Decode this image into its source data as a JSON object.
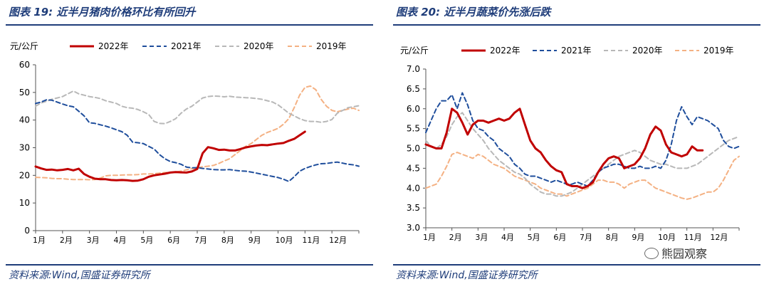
{
  "watermark": "熊园观察",
  "charts": [
    {
      "title": "图表 19:  近半月猪肉价格环比有所回升",
      "source": "资料来源:Wind,国盛证券研究所"
    },
    {
      "title": "图表 20:  近半月蔬菜价先涨后跌",
      "source": "资料来源:Wind,国盛证券研究所"
    }
  ],
  "chart_data": [
    {
      "type": "line",
      "ylabel": "元/公斤",
      "ylim": [
        0,
        60
      ],
      "yticks": [
        "0",
        "10",
        "20",
        "30",
        "40",
        "50",
        "60"
      ],
      "ytick_values": [
        0,
        10,
        20,
        30,
        40,
        50,
        60
      ],
      "categories": [
        "1月",
        "2月",
        "3月",
        "4月",
        "5月",
        "6月",
        "7月",
        "8月",
        "9月",
        "10月",
        "11月",
        "12月"
      ],
      "series": [
        {
          "name": "2022年",
          "color": "#c00000",
          "style": "solid",
          "width": 3,
          "x": [
            0,
            0.2,
            0.4,
            0.6,
            0.8,
            1,
            1.2,
            1.4,
            1.6,
            1.8,
            2,
            2.2,
            2.4,
            2.6,
            2.8,
            3,
            3.2,
            3.4,
            3.6,
            3.8,
            4,
            4.2,
            4.4,
            4.6,
            4.8,
            5,
            5.2,
            5.4,
            5.6,
            5.8,
            6,
            6.2,
            6.4,
            6.6,
            6.8,
            7,
            7.2,
            7.4,
            7.6,
            7.8,
            8,
            8.2,
            8.4,
            8.6,
            8.8,
            9,
            9.2,
            9.4,
            9.6,
            9.8,
            10
          ],
          "values": [
            23.2,
            22.5,
            22,
            22.1,
            21.8,
            22,
            22.3,
            21.8,
            22.4,
            20.5,
            19.5,
            18.8,
            18.6,
            18.6,
            18.3,
            18.2,
            18.3,
            18.2,
            18,
            18.1,
            18.6,
            19.5,
            20,
            20.3,
            20.6,
            21,
            21.2,
            21.1,
            21,
            21.4,
            22.3,
            28,
            30.2,
            29.8,
            29.2,
            29.3,
            29,
            29,
            29.5,
            30.1,
            30.5,
            30.8,
            31,
            30.9,
            31.2,
            31.5,
            31.7,
            32.5,
            33.2,
            34.5,
            35.8
          ]
        },
        {
          "name": "2021年",
          "color": "#1f4e9c",
          "style": "dashed",
          "width": 2,
          "x": [
            0,
            0.2,
            0.4,
            0.6,
            0.8,
            1,
            1.2,
            1.4,
            1.6,
            1.8,
            2,
            2.2,
            2.4,
            2.6,
            2.8,
            3,
            3.2,
            3.4,
            3.6,
            3.8,
            4,
            4.2,
            4.4,
            4.6,
            4.8,
            5,
            5.2,
            5.4,
            5.6,
            5.8,
            6,
            6.2,
            6.4,
            6.6,
            6.8,
            7,
            7.2,
            7.4,
            7.6,
            7.8,
            8,
            8.2,
            8.4,
            8.6,
            8.8,
            9,
            9.2,
            9.4,
            9.6,
            9.8,
            10,
            10.2,
            10.4,
            10.6,
            10.8,
            11,
            11.2,
            11.4,
            11.6,
            11.8,
            12
          ],
          "values": [
            46,
            46.5,
            47.3,
            47.2,
            46.5,
            45.8,
            45.2,
            44.8,
            43.2,
            41.5,
            39,
            38.8,
            38.3,
            37.8,
            37.2,
            36.5,
            35.8,
            34.5,
            32,
            31.8,
            31.5,
            30.5,
            29.5,
            27.5,
            26,
            25,
            24.6,
            24,
            23,
            22.7,
            22.8,
            22.5,
            22.3,
            22.1,
            22,
            22,
            22.1,
            21.8,
            21.6,
            21.5,
            21.2,
            20.8,
            20.4,
            20,
            19.6,
            19.2,
            18.6,
            17.8,
            19.5,
            21.5,
            22.5,
            23.2,
            23.8,
            24.2,
            24.3,
            24.6,
            24.8,
            24.4,
            24,
            23.8,
            23.3
          ]
        },
        {
          "name": "2020年",
          "color": "#b8b8b8",
          "style": "dashed",
          "width": 2,
          "x": [
            0,
            0.2,
            0.4,
            0.6,
            0.8,
            1,
            1.2,
            1.4,
            1.6,
            1.8,
            2,
            2.2,
            2.4,
            2.6,
            2.8,
            3,
            3.2,
            3.4,
            3.6,
            3.8,
            4,
            4.2,
            4.4,
            4.6,
            4.8,
            5,
            5.2,
            5.4,
            5.6,
            5.8,
            6,
            6.2,
            6.4,
            6.6,
            6.8,
            7,
            7.2,
            7.4,
            7.6,
            7.8,
            8,
            8.2,
            8.4,
            8.6,
            8.8,
            9,
            9.2,
            9.4,
            9.6,
            9.8,
            10,
            10.2,
            10.4,
            10.6,
            10.8,
            11,
            11.2,
            11.4,
            11.6,
            11.8,
            12
          ],
          "values": [
            45,
            46.2,
            46.8,
            47.5,
            48,
            48.5,
            49.5,
            50.5,
            49.5,
            49,
            48.5,
            48.2,
            47.8,
            47,
            46.5,
            46,
            45,
            44.5,
            44.3,
            43.8,
            43,
            42,
            39.5,
            38.8,
            38.7,
            39.5,
            40.5,
            42.5,
            44,
            45,
            46.5,
            48,
            48.5,
            48.7,
            48.6,
            48.4,
            48.6,
            48.3,
            48.2,
            48.1,
            48,
            47.8,
            47.5,
            47,
            46.5,
            45.5,
            44,
            42.5,
            41.5,
            40.5,
            39.8,
            39.5,
            39.5,
            39.2,
            39.5,
            40.2,
            42.5,
            43.5,
            44.5,
            44.8,
            45.2
          ]
        },
        {
          "name": "2019年",
          "color": "#f4b183",
          "style": "dashed",
          "width": 2,
          "x": [
            0,
            0.2,
            0.4,
            0.6,
            0.8,
            1,
            1.2,
            1.4,
            1.6,
            1.8,
            2,
            2.2,
            2.4,
            2.6,
            2.8,
            3,
            3.2,
            3.4,
            3.6,
            3.8,
            4,
            4.2,
            4.4,
            4.6,
            4.8,
            5,
            5.2,
            5.4,
            5.6,
            5.8,
            6,
            6.2,
            6.4,
            6.6,
            6.8,
            7,
            7.2,
            7.4,
            7.6,
            7.8,
            8,
            8.2,
            8.4,
            8.6,
            8.8,
            9,
            9.2,
            9.4,
            9.6,
            9.8,
            10,
            10.2,
            10.4,
            10.6,
            10.8,
            11,
            11.2,
            11.4,
            11.6,
            11.8,
            12
          ],
          "values": [
            19.3,
            19.2,
            19.1,
            18.9,
            18.8,
            18.8,
            18.6,
            18.5,
            18.5,
            18.5,
            18.4,
            18.5,
            19,
            19.8,
            20,
            20,
            20.1,
            20.2,
            20.2,
            20.3,
            20.5,
            20.5,
            20.6,
            20.8,
            21,
            21,
            21.2,
            21.5,
            22,
            22.4,
            22.8,
            23.1,
            23.3,
            23.6,
            24.3,
            25.2,
            26,
            27.5,
            29,
            30.5,
            31.5,
            33,
            34.5,
            35.5,
            36.2,
            37,
            38.5,
            40.5,
            44.5,
            49,
            51.8,
            52.3,
            51,
            47.5,
            45,
            43.5,
            43,
            43.5,
            44,
            44.3,
            43.5
          ]
        }
      ]
    },
    {
      "type": "line",
      "ylabel": "元/公斤",
      "ylim": [
        3.0,
        7.0
      ],
      "yticks": [
        "3.0",
        "3.5",
        "4.0",
        "4.5",
        "5.0",
        "5.5",
        "6.0",
        "6.5",
        "7.0"
      ],
      "ytick_values": [
        3.0,
        3.5,
        4.0,
        4.5,
        5.0,
        5.5,
        6.0,
        6.5,
        7.0
      ],
      "categories": [
        "1月",
        "2月",
        "3月",
        "4月",
        "5月",
        "6月",
        "7月",
        "8月",
        "9月",
        "10月",
        "11月",
        "12月"
      ],
      "series": [
        {
          "name": "2022年",
          "color": "#c00000",
          "style": "solid",
          "width": 3,
          "x": [
            0,
            0.2,
            0.4,
            0.6,
            0.8,
            1,
            1.2,
            1.4,
            1.6,
            1.8,
            2,
            2.2,
            2.4,
            2.6,
            2.8,
            3,
            3.2,
            3.4,
            3.6,
            3.8,
            4,
            4.2,
            4.4,
            4.6,
            4.8,
            5,
            5.2,
            5.4,
            5.6,
            5.8,
            6,
            6.2,
            6.4,
            6.6,
            6.8,
            7,
            7.2,
            7.4,
            7.6,
            7.8,
            8,
            8.2,
            8.4,
            8.6,
            8.8,
            9,
            9.2,
            9.4,
            9.6,
            9.8,
            10,
            10.2,
            10.4,
            10.6
          ],
          "values": [
            5.1,
            5.05,
            5.0,
            5.0,
            5.4,
            6.0,
            5.9,
            5.65,
            5.35,
            5.6,
            5.7,
            5.7,
            5.65,
            5.7,
            5.75,
            5.7,
            5.75,
            5.9,
            6.0,
            5.6,
            5.2,
            5.0,
            4.9,
            4.7,
            4.55,
            4.45,
            4.4,
            4.1,
            4.05,
            4.05,
            4.0,
            4.05,
            4.15,
            4.4,
            4.6,
            4.75,
            4.8,
            4.75,
            4.5,
            4.55,
            4.6,
            4.75,
            5.0,
            5.35,
            5.55,
            5.45,
            5.1,
            4.9,
            4.85,
            4.8,
            4.85,
            5.05,
            4.95,
            4.95
          ]
        },
        {
          "name": "2021年",
          "color": "#1f4e9c",
          "style": "dashed",
          "width": 2,
          "x": [
            0,
            0.2,
            0.4,
            0.6,
            0.8,
            1,
            1.2,
            1.4,
            1.6,
            1.8,
            2,
            2.2,
            2.4,
            2.6,
            2.8,
            3,
            3.2,
            3.4,
            3.6,
            3.8,
            4,
            4.2,
            4.4,
            4.6,
            4.8,
            5,
            5.2,
            5.4,
            5.6,
            5.8,
            6,
            6.2,
            6.4,
            6.6,
            6.8,
            7,
            7.2,
            7.4,
            7.6,
            7.8,
            8,
            8.2,
            8.4,
            8.6,
            8.8,
            9,
            9.2,
            9.4,
            9.6,
            9.8,
            10,
            10.2,
            10.4,
            10.6,
            10.8,
            11,
            11.2,
            11.4,
            11.6,
            11.8,
            12
          ],
          "values": [
            5.4,
            5.7,
            6.0,
            6.2,
            6.2,
            6.35,
            6.0,
            6.4,
            6.1,
            5.7,
            5.5,
            5.45,
            5.3,
            5.2,
            5.0,
            4.9,
            4.8,
            4.6,
            4.5,
            4.35,
            4.3,
            4.3,
            4.25,
            4.2,
            4.15,
            4.2,
            4.15,
            4.1,
            4.1,
            4.15,
            4.1,
            4.05,
            4.2,
            4.4,
            4.5,
            4.55,
            4.6,
            4.6,
            4.55,
            4.5,
            4.5,
            4.55,
            4.5,
            4.5,
            4.55,
            4.5,
            4.7,
            5.1,
            5.7,
            6.05,
            5.8,
            5.6,
            5.8,
            5.75,
            5.7,
            5.6,
            5.5,
            5.2,
            5.05,
            5.0,
            5.05
          ]
        },
        {
          "name": "2020年",
          "color": "#b8b8b8",
          "style": "dashed",
          "width": 2,
          "x": [
            0,
            0.2,
            0.4,
            0.6,
            0.8,
            1,
            1.2,
            1.4,
            1.6,
            1.8,
            2,
            2.2,
            2.4,
            2.6,
            2.8,
            3,
            3.2,
            3.4,
            3.6,
            3.8,
            4,
            4.2,
            4.4,
            4.6,
            4.8,
            5,
            5.2,
            5.4,
            5.6,
            5.8,
            6,
            6.2,
            6.4,
            6.6,
            6.8,
            7,
            7.2,
            7.4,
            7.6,
            7.8,
            8,
            8.2,
            8.4,
            8.6,
            8.8,
            9,
            9.2,
            9.4,
            9.6,
            9.8,
            10,
            10.2,
            10.4,
            10.6,
            10.8,
            11,
            11.2,
            11.4,
            11.6,
            11.8,
            12
          ],
          "values": [
            5.2,
            5.05,
            5.0,
            5.1,
            5.3,
            5.6,
            5.8,
            5.9,
            5.7,
            5.5,
            5.35,
            5.2,
            5.0,
            4.85,
            4.7,
            4.6,
            4.5,
            4.4,
            4.35,
            4.25,
            4.1,
            4.0,
            3.9,
            3.85,
            3.85,
            3.8,
            3.8,
            3.85,
            3.9,
            4.0,
            4.1,
            4.2,
            4.3,
            4.4,
            4.5,
            4.6,
            4.7,
            4.8,
            4.85,
            4.9,
            4.95,
            4.9,
            4.8,
            4.7,
            4.65,
            4.6,
            4.6,
            4.55,
            4.5,
            4.5,
            4.5,
            4.55,
            4.6,
            4.7,
            4.8,
            4.9,
            5.0,
            5.1,
            5.2,
            5.25,
            5.3
          ]
        },
        {
          "name": "2019年",
          "color": "#f4b183",
          "style": "dashed",
          "width": 2,
          "x": [
            0,
            0.2,
            0.4,
            0.6,
            0.8,
            1,
            1.2,
            1.4,
            1.6,
            1.8,
            2,
            2.2,
            2.4,
            2.6,
            2.8,
            3,
            3.2,
            3.4,
            3.6,
            3.8,
            4,
            4.2,
            4.4,
            4.6,
            4.8,
            5,
            5.2,
            5.4,
            5.6,
            5.8,
            6,
            6.2,
            6.4,
            6.6,
            6.8,
            7,
            7.2,
            7.4,
            7.6,
            7.8,
            8,
            8.2,
            8.4,
            8.6,
            8.8,
            9,
            9.2,
            9.4,
            9.6,
            9.8,
            10,
            10.2,
            10.4,
            10.6,
            10.8,
            11,
            11.2,
            11.4,
            11.6,
            11.8,
            12
          ],
          "values": [
            4.0,
            4.05,
            4.1,
            4.3,
            4.55,
            4.85,
            4.9,
            4.85,
            4.8,
            4.75,
            4.85,
            4.8,
            4.7,
            4.6,
            4.55,
            4.5,
            4.4,
            4.3,
            4.25,
            4.2,
            4.15,
            4.1,
            4.0,
            3.95,
            3.9,
            3.85,
            3.85,
            3.8,
            3.85,
            3.9,
            3.95,
            4.0,
            4.1,
            4.2,
            4.2,
            4.15,
            4.15,
            4.1,
            4.0,
            4.1,
            4.15,
            4.2,
            4.2,
            4.1,
            4.0,
            3.95,
            3.9,
            3.85,
            3.8,
            3.75,
            3.72,
            3.75,
            3.8,
            3.85,
            3.9,
            3.9,
            4.0,
            4.2,
            4.45,
            4.7,
            4.8
          ]
        }
      ]
    }
  ]
}
